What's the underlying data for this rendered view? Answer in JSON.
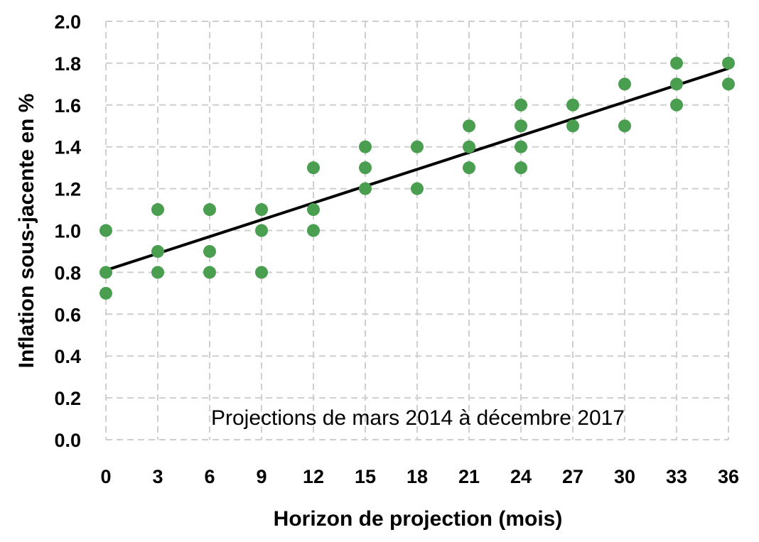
{
  "chart_data": {
    "type": "scatter",
    "title": "",
    "xlabel": "Horizon de projection (mois)",
    "ylabel": "Inflation sous-jacente en  %",
    "annotation": "Projections de mars 2014 à décembre 2017",
    "xticks": [
      0,
      3,
      6,
      9,
      12,
      15,
      18,
      21,
      24,
      27,
      30,
      33,
      36
    ],
    "yticks": [
      "0.0",
      "0.2",
      "0.4",
      "0.6",
      "0.8",
      "1.0",
      "1.2",
      "1.4",
      "1.6",
      "1.8",
      "2.0"
    ],
    "xlim": [
      0,
      36
    ],
    "ylim": [
      0,
      2.0
    ],
    "grid": true,
    "legend": "none",
    "point_color": "#4a9e50",
    "line_color": "#000000",
    "points": [
      {
        "x": 0,
        "y": 1.0
      },
      {
        "x": 0,
        "y": 0.8
      },
      {
        "x": 0,
        "y": 0.7
      },
      {
        "x": 3,
        "y": 1.1
      },
      {
        "x": 3,
        "y": 0.9
      },
      {
        "x": 3,
        "y": 0.8
      },
      {
        "x": 6,
        "y": 1.1
      },
      {
        "x": 6,
        "y": 0.9
      },
      {
        "x": 6,
        "y": 0.8
      },
      {
        "x": 9,
        "y": 1.1
      },
      {
        "x": 9,
        "y": 1.0
      },
      {
        "x": 9,
        "y": 0.8
      },
      {
        "x": 12,
        "y": 1.3
      },
      {
        "x": 12,
        "y": 1.1
      },
      {
        "x": 12,
        "y": 1.0
      },
      {
        "x": 15,
        "y": 1.4
      },
      {
        "x": 15,
        "y": 1.3
      },
      {
        "x": 15,
        "y": 1.2
      },
      {
        "x": 18,
        "y": 1.4
      },
      {
        "x": 18,
        "y": 1.2
      },
      {
        "x": 21,
        "y": 1.5
      },
      {
        "x": 21,
        "y": 1.4
      },
      {
        "x": 21,
        "y": 1.3
      },
      {
        "x": 24,
        "y": 1.6
      },
      {
        "x": 24,
        "y": 1.5
      },
      {
        "x": 24,
        "y": 1.4
      },
      {
        "x": 24,
        "y": 1.3
      },
      {
        "x": 27,
        "y": 1.6
      },
      {
        "x": 27,
        "y": 1.5
      },
      {
        "x": 30,
        "y": 1.7
      },
      {
        "x": 30,
        "y": 1.5
      },
      {
        "x": 33,
        "y": 1.8
      },
      {
        "x": 33,
        "y": 1.7
      },
      {
        "x": 33,
        "y": 1.6
      },
      {
        "x": 36,
        "y": 1.8
      },
      {
        "x": 36,
        "y": 1.7
      }
    ],
    "trendline": {
      "x": [
        0,
        36
      ],
      "y": [
        0.81,
        1.775
      ]
    }
  }
}
